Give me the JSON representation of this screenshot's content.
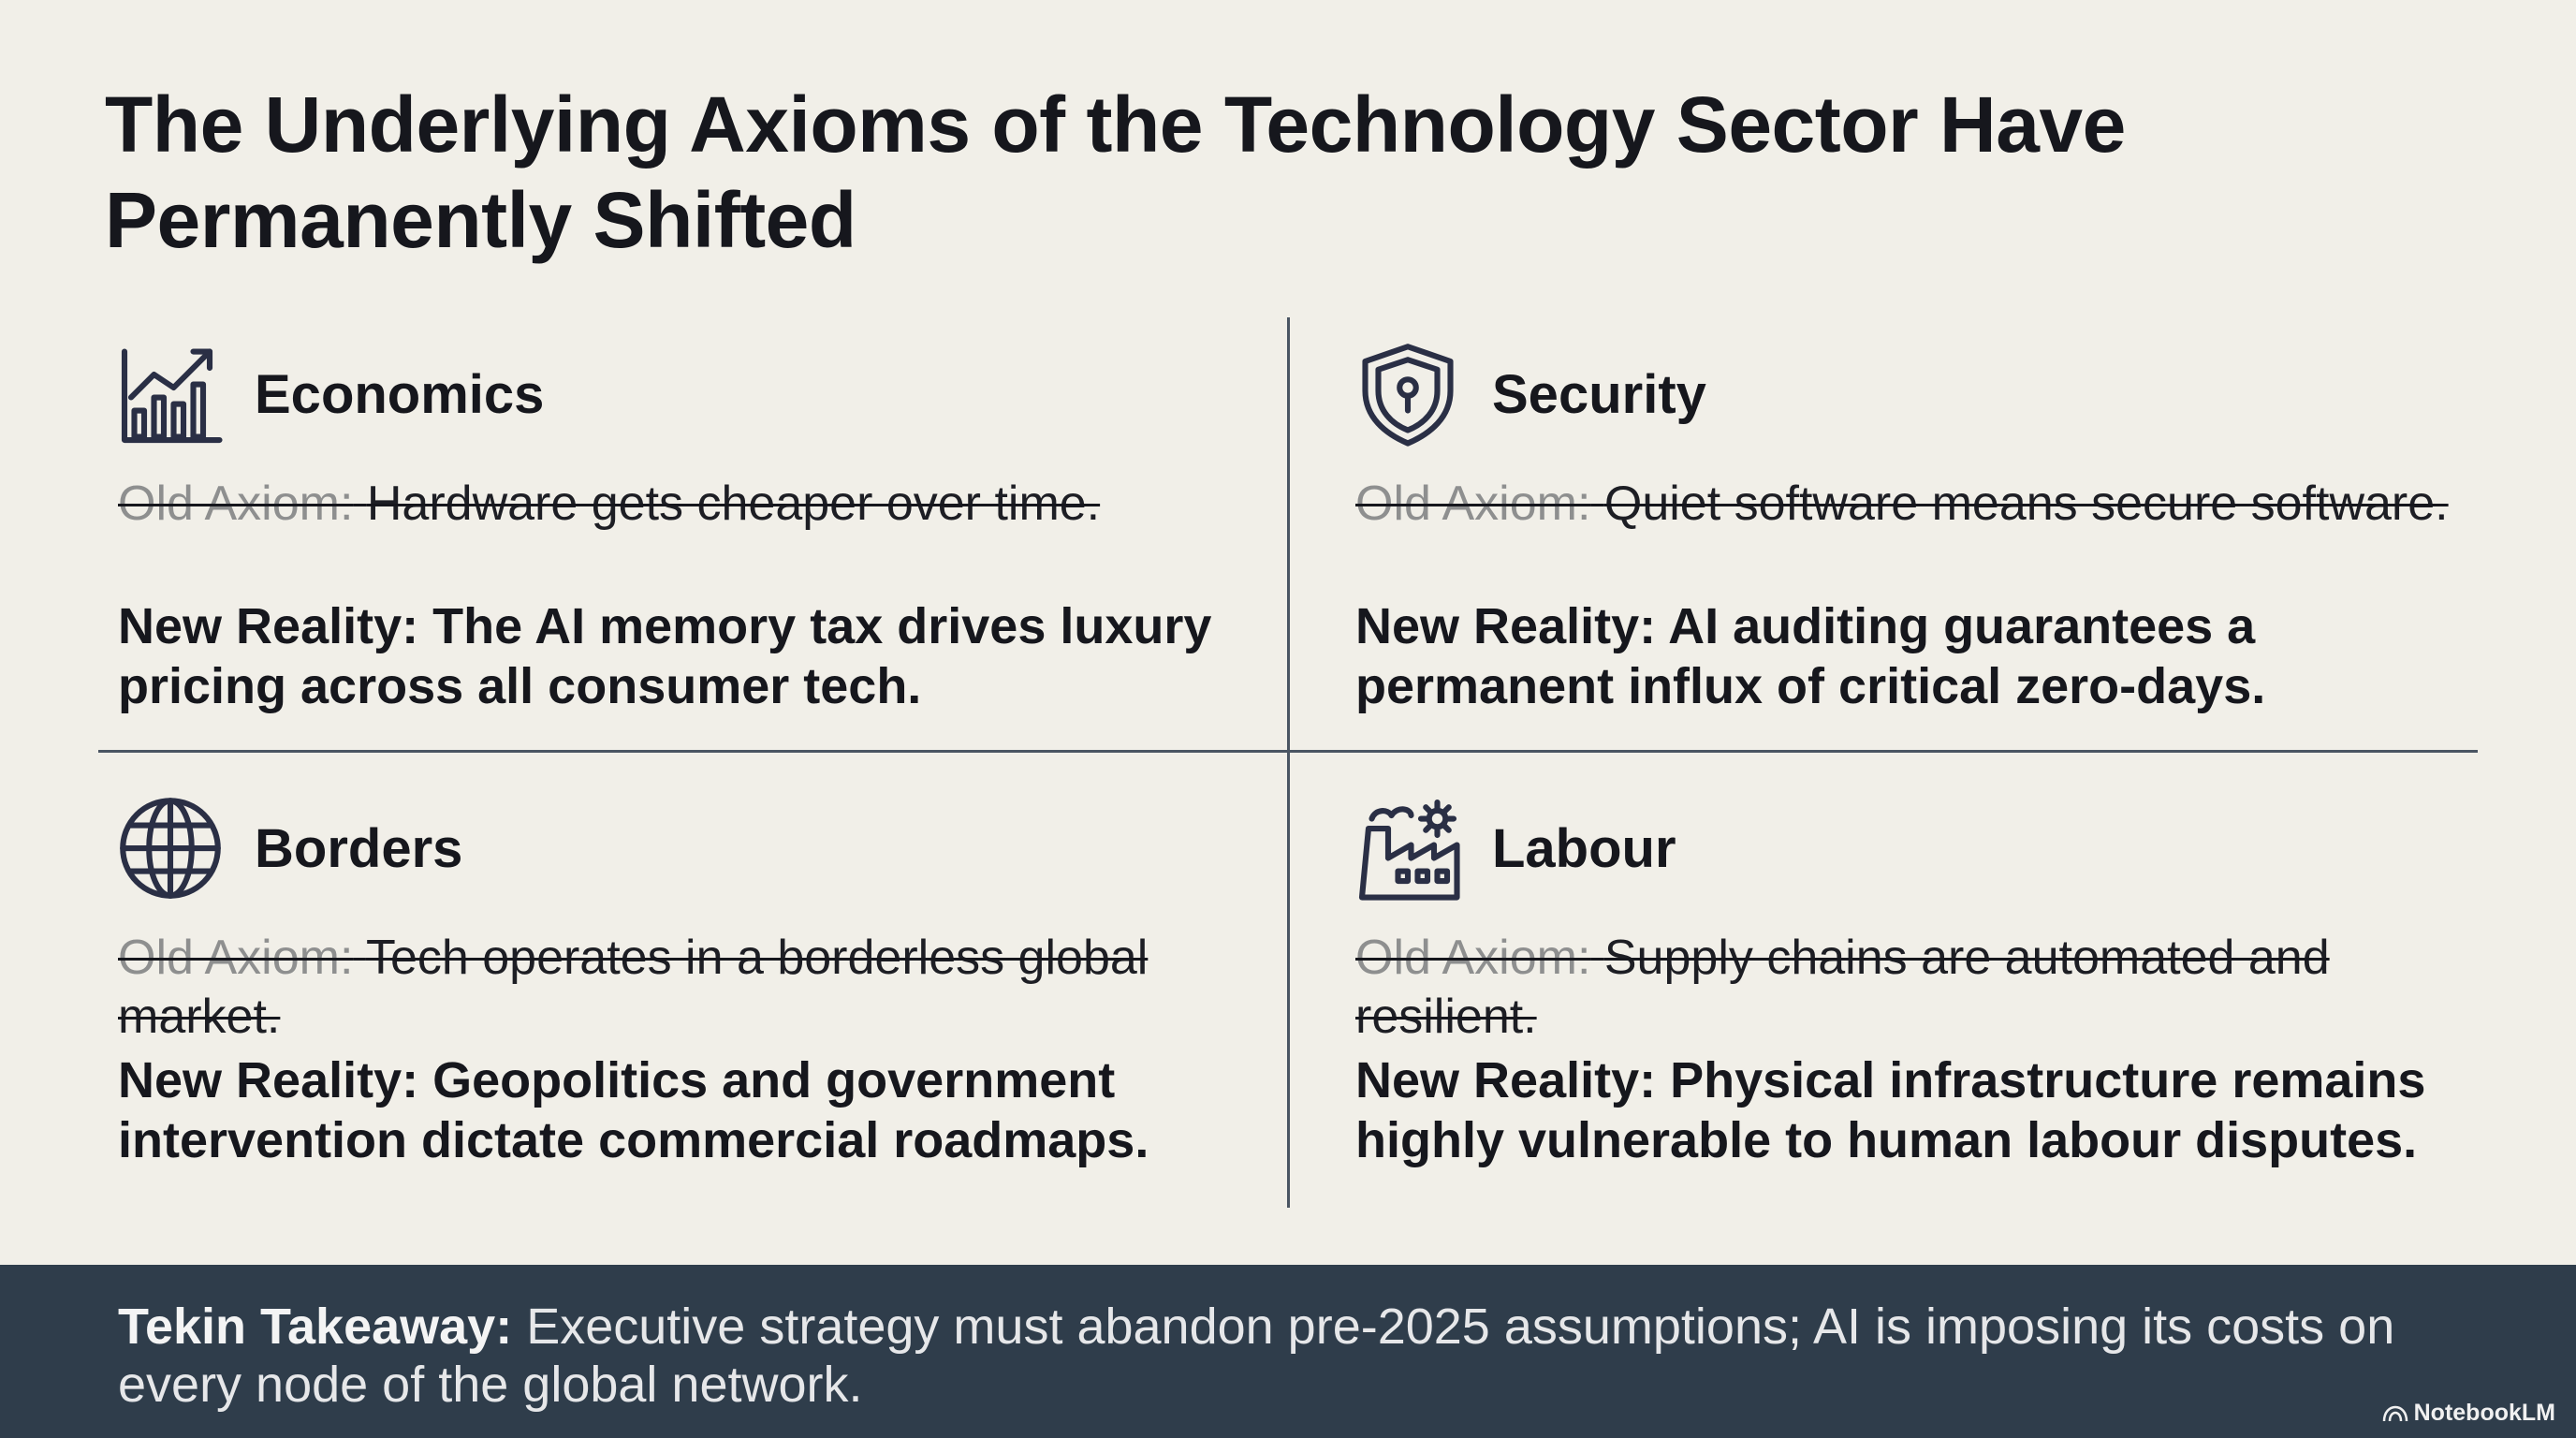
{
  "title": "The Underlying Axioms of the Technology Sector Have Permanently Shifted",
  "quadrants": [
    {
      "heading": "Economics",
      "old_label": "Old Axiom:",
      "old_text": "Hardware gets cheaper over time.",
      "new_text": "New Reality: The AI memory tax drives luxury pricing across all consumer tech."
    },
    {
      "heading": "Security",
      "old_label": "Old Axiom:",
      "old_text": "Quiet software means secure software.",
      "new_text": "New Reality: AI auditing guarantees a permanent influx of critical zero-days."
    },
    {
      "heading": "Borders",
      "old_label": "Old Axiom:",
      "old_text": "Tech operates in a borderless global market.",
      "new_text": "New Reality: Geopolitics and government intervention dictate commercial roadmaps."
    },
    {
      "heading": "Labour",
      "old_label": "Old Axiom:",
      "old_text": "Supply chains are automated and resilient.",
      "new_text": "New Reality: Physical infrastructure remains highly vulnerable to human labour disputes."
    }
  ],
  "footer": {
    "label": "Tekin Takeaway:",
    "text": "Executive strategy must abandon pre-2025 assumptions; AI is imposing its costs on every node of the global network."
  },
  "brand": "NotebookLM"
}
